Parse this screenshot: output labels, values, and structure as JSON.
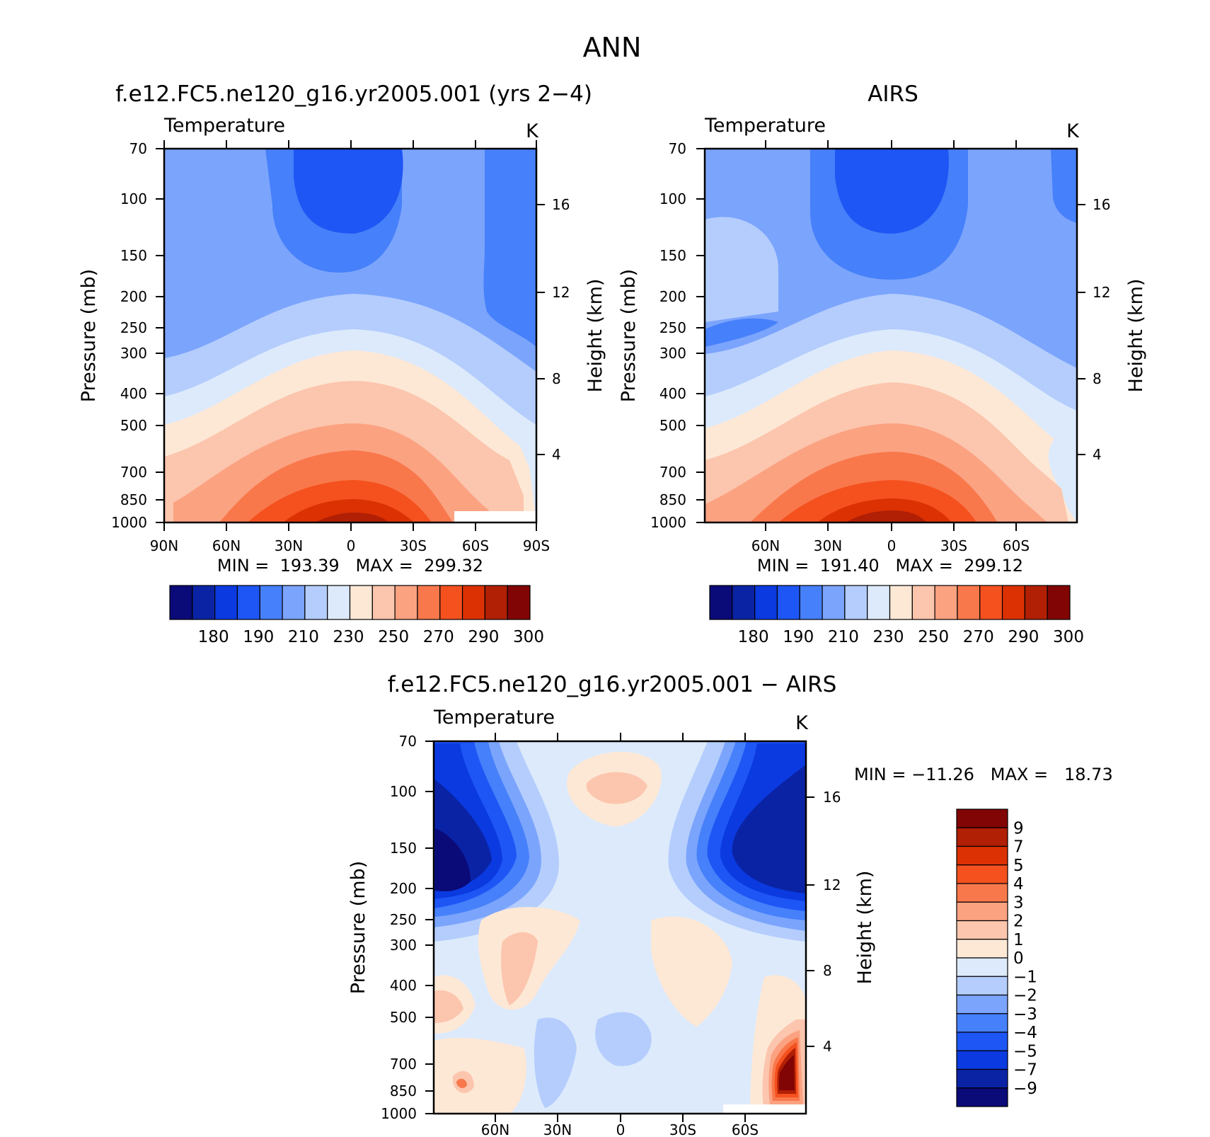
{
  "figure": {
    "title": "ANN",
    "panels": [
      {
        "title": "f.e12.FC5.ne120_g16.yr2005.001 (yrs 2−4)",
        "left_string": "Temperature",
        "right_string": "K",
        "ylabel": "Pressure (mb)",
        "ylabel_right": "Height (km)",
        "stats": "MIN =  193.39   MAX =  299.32",
        "x_tick_labels": [
          "90N",
          "60N",
          "30N",
          "0",
          "30S",
          "60S",
          "90S"
        ],
        "y_tick_labels": [
          "70",
          "100",
          "150",
          "200",
          "250",
          "300",
          "400",
          "500",
          "700",
          "850",
          "1000"
        ],
        "height_tick_labels": [
          "16",
          "12",
          "8",
          "4"
        ]
      },
      {
        "title": "AIRS",
        "left_string": "Temperature",
        "right_string": "K",
        "ylabel": "Pressure (mb)",
        "ylabel_right": "Height (km)",
        "stats": "MIN =  191.40   MAX =  299.12",
        "x_tick_labels": [
          "60N",
          "30N",
          "0",
          "30S",
          "60S"
        ],
        "y_tick_labels": [
          "70",
          "100",
          "150",
          "200",
          "250",
          "300",
          "400",
          "500",
          "700",
          "850",
          "1000"
        ],
        "height_tick_labels": [
          "16",
          "12",
          "8",
          "4"
        ]
      },
      {
        "title": "f.e12.FC5.ne120_g16.yr2005.001 − AIRS",
        "left_string": "Temperature",
        "right_string": "K",
        "ylabel": "Pressure (mb)",
        "ylabel_right": "Height (km)",
        "stats": "MIN = −11.26   MAX =   18.73",
        "x_tick_labels": [
          "60N",
          "30N",
          "0",
          "30S",
          "60S"
        ],
        "y_tick_labels": [
          "70",
          "100",
          "150",
          "200",
          "250",
          "300",
          "400",
          "500",
          "700",
          "850",
          "1000"
        ],
        "height_tick_labels": [
          "16",
          "12",
          "8",
          "4"
        ]
      }
    ],
    "colorbar_abs": {
      "labels": [
        "180",
        "190",
        "210",
        "230",
        "250",
        "270",
        "290",
        "300"
      ],
      "colors": [
        "#0a0a78",
        "#0a23a5",
        "#0a3ae0",
        "#1e56f5",
        "#4680fa",
        "#7ba4fc",
        "#b4cdfd",
        "#dceafb",
        "#fde8d6",
        "#fcc5ad",
        "#fba281",
        "#f8784c",
        "#f4511e",
        "#db3103",
        "#b11f05",
        "#820505"
      ]
    },
    "colorbar_diff": {
      "labels": [
        "9",
        "7",
        "5",
        "4",
        "3",
        "2",
        "1",
        "0",
        "−1",
        "−2",
        "−3",
        "−4",
        "−5",
        "−7",
        "−9"
      ],
      "colors": [
        "#820505",
        "#b11f05",
        "#db3103",
        "#f4511e",
        "#f8784c",
        "#fba281",
        "#fcc5ad",
        "#fde8d6",
        "#dceafb",
        "#b4cdfd",
        "#7ba4fc",
        "#4680fa",
        "#1e56f5",
        "#0a3ae0",
        "#0a23a5",
        "#0a0a78"
      ]
    }
  },
  "chart_data": [
    {
      "type": "heatmap",
      "title": "f.e12.FC5.ne120_g16.yr2005.001 (yrs 2−4)",
      "variable": "Temperature",
      "units": "K",
      "x": [
        "90N",
        "60N",
        "30N",
        "0",
        "30S",
        "60S",
        "90S"
      ],
      "ylabel": "Pressure (mb)",
      "y": [
        70,
        100,
        150,
        200,
        250,
        300,
        400,
        500,
        700,
        850,
        1000
      ],
      "min": 193.39,
      "max": 299.32,
      "contour_levels": [
        180,
        190,
        210,
        230,
        250,
        270,
        290,
        300
      ]
    },
    {
      "type": "heatmap",
      "title": "AIRS",
      "variable": "Temperature",
      "units": "K",
      "x": [
        "60N",
        "30N",
        "0",
        "30S",
        "60S"
      ],
      "ylabel": "Pressure (mb)",
      "y": [
        70,
        100,
        150,
        200,
        250,
        300,
        400,
        500,
        700,
        850,
        1000
      ],
      "min": 191.4,
      "max": 299.12,
      "contour_levels": [
        180,
        190,
        210,
        230,
        250,
        270,
        290,
        300
      ]
    },
    {
      "type": "heatmap",
      "title": "f.e12.FC5.ne120_g16.yr2005.001 − AIRS",
      "variable": "Temperature",
      "units": "K",
      "x": [
        "60N",
        "30N",
        "0",
        "30S",
        "60S"
      ],
      "ylabel": "Pressure (mb)",
      "y": [
        70,
        100,
        150,
        200,
        250,
        300,
        400,
        500,
        700,
        850,
        1000
      ],
      "min": -11.26,
      "max": 18.73,
      "contour_levels": [
        -9,
        -7,
        -5,
        -4,
        -3,
        -2,
        -1,
        0,
        1,
        2,
        3,
        4,
        5,
        7,
        9
      ]
    }
  ]
}
